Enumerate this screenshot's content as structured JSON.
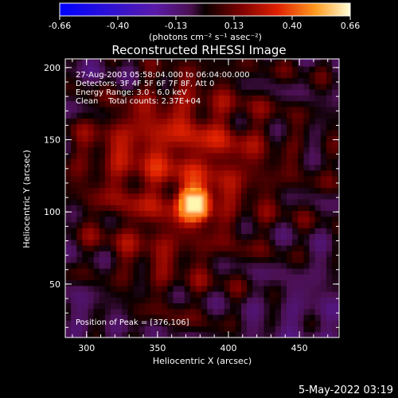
{
  "chart_data": {
    "type": "heatmap",
    "title": "Reconstructed RHESSI Image",
    "xlabel": "Heliocentric X (arcsec)",
    "ylabel": "Heliocentric Y (arcsec)",
    "xlim": [
      285,
      478
    ],
    "ylim": [
      13,
      206
    ],
    "x_ticks": [
      300,
      350,
      400,
      450
    ],
    "y_ticks": [
      50,
      100,
      150,
      200
    ],
    "colorbar": {
      "ticks": [
        "-0.66",
        "-0.40",
        "-0.13",
        "0.13",
        "0.40",
        "0.66"
      ],
      "range": [
        -0.66,
        0.66
      ],
      "unit_label": "(photons cm⁻² s⁻¹ asec⁻²)"
    },
    "annotations": [
      "27-Aug-2003 05:58:04.000 to 06:04:00.000",
      "Detectors: 3F 4F 5F 6F 7F 8F, Att 0",
      "Energy Range: 3.0 - 6.0 keV",
      "Clean    Total counts: 2.37E+04"
    ],
    "peak_label": "Position of Peak = [376,106]",
    "peak": {
      "x": 376,
      "y": 106,
      "value": 0.66
    },
    "timestamp": "5-May-2022 03:19",
    "colors": {
      "background": "#000000",
      "frame": "#ffffff"
    }
  }
}
